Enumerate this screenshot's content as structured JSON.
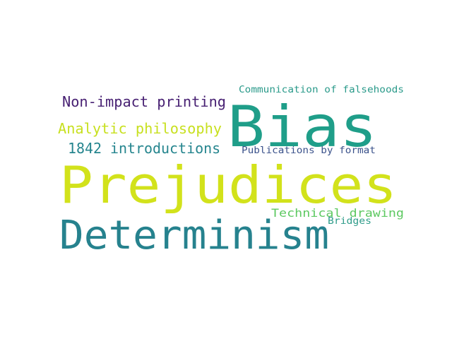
{
  "words": [
    {
      "text": "Prejudices",
      "color": "#d2e21b"
    },
    {
      "text": "Bias",
      "color": "#1f9e89"
    },
    {
      "text": "Determinism",
      "color": "#26828e"
    },
    {
      "text": "Non-impact printing",
      "color": "#482173"
    },
    {
      "text": "Analytic philosophy",
      "color": "#c8e020"
    },
    {
      "text": "1842 introductions",
      "color": "#25858e"
    },
    {
      "text": "Communication of falsehoods",
      "color": "#2a9a8a"
    },
    {
      "text": "Publications by format",
      "color": "#3b528b"
    },
    {
      "text": "Technical drawing",
      "color": "#5ec962"
    },
    {
      "text": "Bridges",
      "color": "#2f9c8a"
    }
  ]
}
